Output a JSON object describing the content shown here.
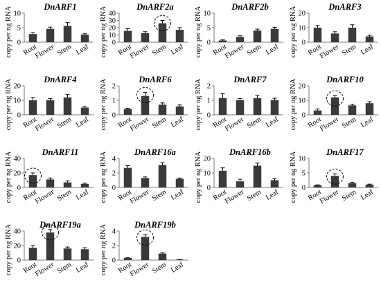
{
  "chart_data": [
    {
      "type": "bar",
      "title": "DnARF1",
      "ylabel": "copy per ng RNA",
      "categories": [
        "Root",
        "Flower",
        "Stem",
        "Leaf"
      ],
      "yticks": [
        "0",
        "5",
        "10"
      ],
      "ylim": [
        0,
        10
      ],
      "values": [
        2.8,
        4.6,
        5.6,
        2.6
      ],
      "errors": [
        0.5,
        0.6,
        1.2,
        0.3
      ],
      "highlight": null
    },
    {
      "type": "bar",
      "title": "DnARF2a",
      "ylabel": "copy per ng RNA",
      "categories": [
        "Root",
        "Flower",
        "Stem",
        "Leaf"
      ],
      "yticks": [
        "0",
        "10",
        "20",
        "30",
        "40"
      ],
      "ylim": [
        0,
        40
      ],
      "values": [
        15.5,
        12.5,
        26,
        17
      ],
      "errors": [
        3,
        2,
        4,
        3
      ],
      "highlight": 2
    },
    {
      "type": "bar",
      "title": "DnARF2b",
      "ylabel": "copy per ng RNA",
      "categories": [
        "Root",
        "Flower",
        "Stem",
        "Leaf"
      ],
      "yticks": [
        "0",
        "5",
        "10"
      ],
      "ylim": [
        0,
        10
      ],
      "values": [
        0.6,
        1.8,
        4,
        4.6
      ],
      "errors": [
        0.2,
        0.4,
        0.5,
        0.5
      ],
      "highlight": null
    },
    {
      "type": "bar",
      "title": "DnARF3",
      "ylabel": "copy per ng RNA",
      "categories": [
        "Root",
        "Flower",
        "Stem",
        "Leaf"
      ],
      "yticks": [
        "0",
        "10",
        "20"
      ],
      "ylim": [
        0,
        20
      ],
      "values": [
        10,
        6,
        10,
        4
      ],
      "errors": [
        1.5,
        1.2,
        2,
        0.8
      ],
      "highlight": null
    },
    {
      "type": "bar",
      "title": "DnARF4",
      "ylabel": "copy per ng RNA",
      "categories": [
        "Root",
        "Flower",
        "Stem",
        "Leaf"
      ],
      "yticks": [
        "0",
        "10",
        "20"
      ],
      "ylim": [
        0,
        20
      ],
      "values": [
        10,
        10,
        12,
        5
      ],
      "errors": [
        2,
        1.2,
        2,
        0.7
      ],
      "highlight": null
    },
    {
      "type": "bar",
      "title": "DnARF6",
      "ylabel": "copy per ng RNA",
      "categories": [
        "Root",
        "Flower",
        "Stem",
        "Leaf"
      ],
      "yticks": [
        "0",
        "1",
        "2"
      ],
      "ylim": [
        0,
        2
      ],
      "values": [
        0.4,
        1.3,
        0.7,
        0.58
      ],
      "errors": [
        0.05,
        0.25,
        0.12,
        0.1
      ],
      "highlight": 1
    },
    {
      "type": "bar",
      "title": "DnARF7",
      "ylabel": "copy per ng RNA",
      "categories": [
        "Root",
        "Flower",
        "Stem",
        "Leaf"
      ],
      "yticks": [
        "0",
        "1",
        "2"
      ],
      "ylim": [
        0,
        2
      ],
      "values": [
        1.15,
        1.02,
        1.15,
        1.02
      ],
      "errors": [
        0.3,
        0.1,
        0.2,
        0.12
      ],
      "highlight": null
    },
    {
      "type": "bar",
      "title": "DnARF10",
      "ylabel": "copy per ng RNA",
      "categories": [
        "Root",
        "Flower",
        "Stem",
        "Leaf"
      ],
      "yticks": [
        "0",
        "10",
        "20"
      ],
      "ylim": [
        0,
        20
      ],
      "values": [
        3,
        12,
        6.5,
        8
      ],
      "errors": [
        1,
        1.2,
        0.8,
        1
      ],
      "highlight": 1
    },
    {
      "type": "bar",
      "title": "DnARF11",
      "ylabel": "copy per ng RNA",
      "categories": [
        "Root",
        "Flower",
        "Stem",
        "Leaf"
      ],
      "yticks": [
        "0",
        "20",
        "40"
      ],
      "ylim": [
        0,
        40
      ],
      "values": [
        17,
        11,
        7,
        5
      ],
      "errors": [
        3,
        2,
        2,
        1
      ],
      "highlight": 0
    },
    {
      "type": "bar",
      "title": "DnARF16a",
      "ylabel": "copy per ng RNA",
      "categories": [
        "Root",
        "Flower",
        "Stem",
        "Leaf"
      ],
      "yticks": [
        "0",
        "2",
        "4"
      ],
      "ylim": [
        0,
        4
      ],
      "values": [
        2.7,
        1.3,
        3.1,
        1.2
      ],
      "errors": [
        0.3,
        0.15,
        0.3,
        0.1
      ],
      "highlight": null
    },
    {
      "type": "bar",
      "title": "DnARF16b",
      "ylabel": "copy per ng RNA",
      "categories": [
        "Root",
        "Flower",
        "Stem",
        "Leaf"
      ],
      "yticks": [
        "0",
        "10",
        "20"
      ],
      "ylim": [
        0,
        20
      ],
      "values": [
        11.5,
        4.2,
        15,
        5
      ],
      "errors": [
        2,
        1.5,
        1.8,
        1
      ],
      "highlight": null
    },
    {
      "type": "bar",
      "title": "DnARF17",
      "ylabel": "copy per ng RNA",
      "categories": [
        "Root",
        "Flower",
        "Stem",
        "Leaf"
      ],
      "yticks": [
        "0",
        "5",
        "10"
      ],
      "ylim": [
        0,
        10
      ],
      "values": [
        0.8,
        4,
        1.5,
        1
      ],
      "errors": [
        0.1,
        0.7,
        0.3,
        0.15
      ],
      "highlight": 1
    },
    {
      "type": "bar",
      "title": "DnARF19a",
      "ylabel": "copy per ng RNA",
      "categories": [
        "Root",
        "Flower",
        "Stem",
        "Leaf"
      ],
      "yticks": [
        "0",
        "20",
        "40"
      ],
      "ylim": [
        0,
        40
      ],
      "values": [
        17,
        38,
        16,
        15
      ],
      "errors": [
        3,
        4,
        2,
        2
      ],
      "highlight": 1
    },
    {
      "type": "bar",
      "title": "DnARF19b",
      "ylabel": "copy per ng RNA",
      "categories": [
        "Root",
        "Flower",
        "Stem",
        "Leaf"
      ],
      "yticks": [
        "0",
        "2",
        "4"
      ],
      "ylim": [
        0,
        4
      ],
      "values": [
        0.3,
        3.2,
        0.9,
        0.08
      ],
      "errors": [
        0.05,
        0.3,
        0.1,
        0.02
      ],
      "highlight": 1
    }
  ],
  "colors": {
    "bar": "#3a3a3a",
    "axis": "#7a7a7a",
    "error": "#000000",
    "highlight": "#000000"
  }
}
